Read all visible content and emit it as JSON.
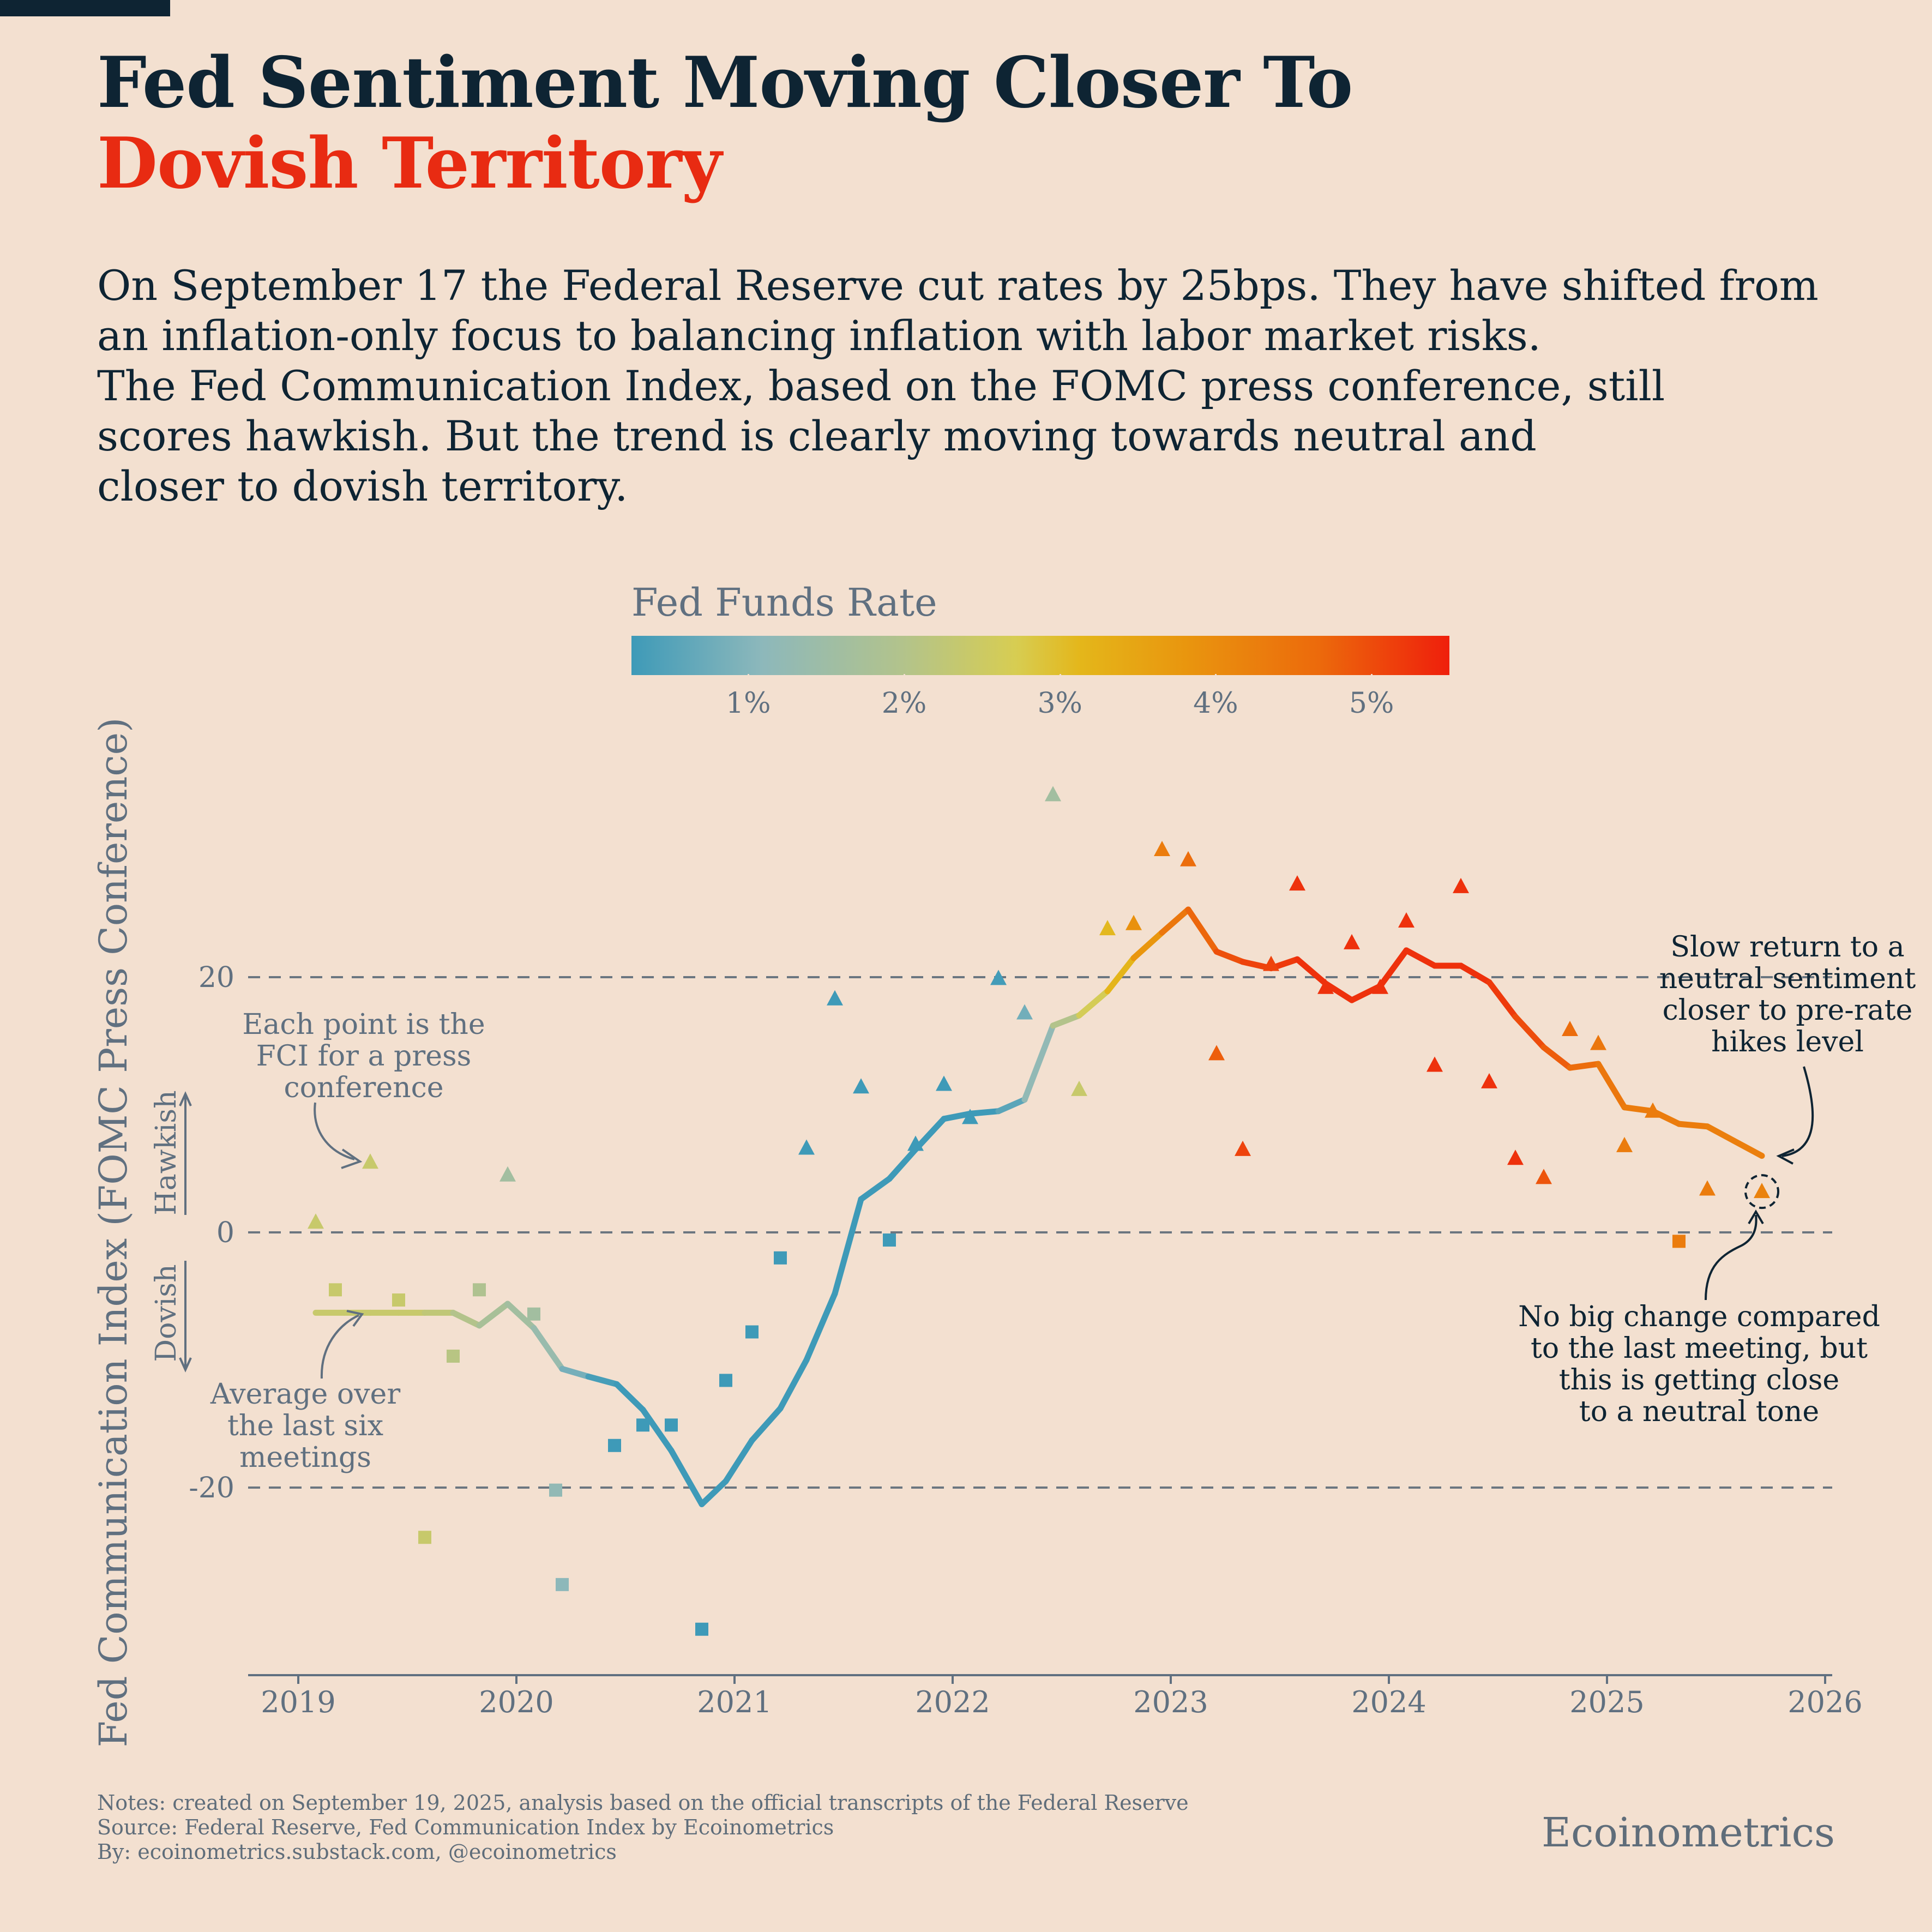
{
  "title": {
    "line1": "Fed Sentiment Moving Closer To",
    "line2": "Dovish Territory"
  },
  "subtitle": [
    "On September 17 the Federal Reserve cut rates by 25bps. They have shifted from",
    "an inflation-only focus to balancing inflation with labor market risks.",
    "The Fed Communication Index, based on the FOMC press conference, still",
    "scores hawkish. But the trend is clearly moving towards neutral and",
    "closer to dovish territory."
  ],
  "legend": {
    "title": "Fed Funds Rate",
    "ticks": [
      "1%",
      "2%",
      "3%",
      "4%",
      "5%"
    ],
    "tick_values": [
      1,
      2,
      3,
      4,
      5
    ],
    "range": [
      0.25,
      5.5
    ]
  },
  "colors": {
    "background": "#f3e0d0",
    "title_dark": "#0e2433",
    "title_accent": "#e82b12",
    "muted": "#607080",
    "scale": [
      "#3e9ab8",
      "#8db8bb",
      "#b2c38c",
      "#d7cd52",
      "#e4b61a",
      "#e9950e",
      "#ec6a0c",
      "#ef1f0c"
    ]
  },
  "chart_data": {
    "type": "line",
    "title": "Fed Communication Index (FOMC Press Conference)",
    "ylabel": "Fed Communication Index (FOMC Press Conference)",
    "xlabel": "",
    "xlim": [
      2018.8,
      2026.05
    ],
    "ylim": [
      -35,
      35
    ],
    "x_ticks": [
      2019,
      2020,
      2021,
      2022,
      2023,
      2024,
      2025,
      2026
    ],
    "x_tick_labels": [
      "2019",
      "2020",
      "2021",
      "2022",
      "2023",
      "2024",
      "2025",
      "2026"
    ],
    "y_ticks": [
      20,
      0,
      -20
    ],
    "y_tick_labels": [
      "20",
      "0",
      "-20"
    ],
    "grid": "dashed horizontal at 20, 0, -20",
    "direction_labels": {
      "up": "Hawkish",
      "down": "Dovish"
    },
    "annotations": [
      {
        "id": "each_point",
        "text": [
          "Each point is the",
          "FCI for a press",
          "conference"
        ]
      },
      {
        "id": "average",
        "text": [
          "Average over",
          "the last six",
          "meetings"
        ]
      },
      {
        "id": "slow_return",
        "text": [
          "Slow return to a",
          "neutral sentiment",
          "closer to pre-rate",
          "hikes level"
        ]
      },
      {
        "id": "no_big_change",
        "text": [
          "No big change compared",
          "to the last meeting, but",
          "this is getting close",
          "to a neutral tone"
        ]
      }
    ],
    "series": [
      {
        "name": "FCI press conference",
        "kind": "points",
        "points": [
          {
            "x": 2019.08,
            "y": 0.8,
            "rate": 2.4,
            "marker": "triangle"
          },
          {
            "x": 2019.17,
            "y": -4.5,
            "rate": 2.4,
            "marker": "square"
          },
          {
            "x": 2019.33,
            "y": 5.5,
            "rate": 2.4,
            "marker": "triangle"
          },
          {
            "x": 2019.46,
            "y": -5.3,
            "rate": 2.4,
            "marker": "square"
          },
          {
            "x": 2019.58,
            "y": -23.9,
            "rate": 2.4,
            "marker": "square"
          },
          {
            "x": 2019.71,
            "y": -9.7,
            "rate": 2.1,
            "marker": "square"
          },
          {
            "x": 2019.83,
            "y": -4.5,
            "rate": 1.9,
            "marker": "square"
          },
          {
            "x": 2019.96,
            "y": 4.5,
            "rate": 1.6,
            "marker": "triangle"
          },
          {
            "x": 2020.08,
            "y": -6.4,
            "rate": 1.6,
            "marker": "square"
          },
          {
            "x": 2020.18,
            "y": -20.2,
            "rate": 1.2,
            "marker": "square"
          },
          {
            "x": 2020.21,
            "y": -27.6,
            "rate": 1.1,
            "marker": "square"
          },
          {
            "x": 2020.45,
            "y": -16.7,
            "rate": 0.1,
            "marker": "square"
          },
          {
            "x": 2020.58,
            "y": -15.1,
            "rate": 0.1,
            "marker": "square"
          },
          {
            "x": 2020.71,
            "y": -15.1,
            "rate": 0.1,
            "marker": "square"
          },
          {
            "x": 2020.85,
            "y": -31.1,
            "rate": 0.1,
            "marker": "square"
          },
          {
            "x": 2020.96,
            "y": -11.6,
            "rate": 0.1,
            "marker": "square"
          },
          {
            "x": 2021.08,
            "y": -7.8,
            "rate": 0.1,
            "marker": "square"
          },
          {
            "x": 2021.21,
            "y": -2.0,
            "rate": 0.1,
            "marker": "square"
          },
          {
            "x": 2021.33,
            "y": 6.6,
            "rate": 0.1,
            "marker": "triangle"
          },
          {
            "x": 2021.46,
            "y": 18.3,
            "rate": 0.1,
            "marker": "triangle"
          },
          {
            "x": 2021.58,
            "y": 11.4,
            "rate": 0.1,
            "marker": "triangle"
          },
          {
            "x": 2021.71,
            "y": -0.6,
            "rate": 0.1,
            "marker": "square"
          },
          {
            "x": 2021.83,
            "y": 6.9,
            "rate": 0.1,
            "marker": "triangle"
          },
          {
            "x": 2021.96,
            "y": 11.6,
            "rate": 0.1,
            "marker": "triangle"
          },
          {
            "x": 2022.08,
            "y": 9.0,
            "rate": 0.1,
            "marker": "triangle"
          },
          {
            "x": 2022.21,
            "y": 19.9,
            "rate": 0.3,
            "marker": "triangle"
          },
          {
            "x": 2022.33,
            "y": 17.2,
            "rate": 0.8,
            "marker": "triangle"
          },
          {
            "x": 2022.46,
            "y": 34.3,
            "rate": 1.6,
            "marker": "triangle"
          },
          {
            "x": 2022.58,
            "y": 11.2,
            "rate": 2.4,
            "marker": "triangle"
          },
          {
            "x": 2022.71,
            "y": 23.8,
            "rate": 3.1,
            "marker": "triangle"
          },
          {
            "x": 2022.83,
            "y": 24.2,
            "rate": 3.9,
            "marker": "triangle"
          },
          {
            "x": 2022.96,
            "y": 30.0,
            "rate": 4.3,
            "marker": "triangle"
          },
          {
            "x": 2023.08,
            "y": 29.2,
            "rate": 4.6,
            "marker": "triangle"
          },
          {
            "x": 2023.21,
            "y": 14.0,
            "rate": 4.8,
            "marker": "triangle"
          },
          {
            "x": 2023.33,
            "y": 6.5,
            "rate": 5.1,
            "marker": "triangle"
          },
          {
            "x": 2023.46,
            "y": 21.0,
            "rate": 5.1,
            "marker": "triangle"
          },
          {
            "x": 2023.58,
            "y": 27.3,
            "rate": 5.3,
            "marker": "triangle"
          },
          {
            "x": 2023.71,
            "y": 19.2,
            "rate": 5.3,
            "marker": "triangle"
          },
          {
            "x": 2023.83,
            "y": 22.7,
            "rate": 5.3,
            "marker": "triangle"
          },
          {
            "x": 2023.96,
            "y": 19.2,
            "rate": 5.3,
            "marker": "triangle"
          },
          {
            "x": 2024.08,
            "y": 24.4,
            "rate": 5.3,
            "marker": "triangle"
          },
          {
            "x": 2024.21,
            "y": 13.1,
            "rate": 5.3,
            "marker": "triangle"
          },
          {
            "x": 2024.33,
            "y": 27.1,
            "rate": 5.3,
            "marker": "triangle"
          },
          {
            "x": 2024.46,
            "y": 11.8,
            "rate": 5.3,
            "marker": "triangle"
          },
          {
            "x": 2024.58,
            "y": 5.8,
            "rate": 5.3,
            "marker": "triangle"
          },
          {
            "x": 2024.71,
            "y": 4.3,
            "rate": 4.9,
            "marker": "triangle"
          },
          {
            "x": 2024.83,
            "y": 15.9,
            "rate": 4.6,
            "marker": "triangle"
          },
          {
            "x": 2024.96,
            "y": 14.8,
            "rate": 4.4,
            "marker": "triangle"
          },
          {
            "x": 2025.08,
            "y": 6.8,
            "rate": 4.3,
            "marker": "triangle"
          },
          {
            "x": 2025.21,
            "y": 9.5,
            "rate": 4.3,
            "marker": "triangle"
          },
          {
            "x": 2025.33,
            "y": -0.7,
            "rate": 4.3,
            "marker": "square"
          },
          {
            "x": 2025.46,
            "y": 3.4,
            "rate": 4.3,
            "marker": "triangle"
          },
          {
            "x": 2025.71,
            "y": 3.2,
            "rate": 4.2,
            "marker": "triangle"
          }
        ]
      },
      {
        "name": "Average over the last six meetings",
        "kind": "line",
        "points": [
          {
            "x": 2019.08,
            "y": -6.3,
            "rate": 2.4
          },
          {
            "x": 2019.21,
            "y": -6.3,
            "rate": 2.4
          },
          {
            "x": 2019.33,
            "y": -6.3,
            "rate": 2.4
          },
          {
            "x": 2019.46,
            "y": -6.3,
            "rate": 2.4
          },
          {
            "x": 2019.58,
            "y": -6.3,
            "rate": 2.4
          },
          {
            "x": 2019.71,
            "y": -6.3,
            "rate": 2.1
          },
          {
            "x": 2019.83,
            "y": -7.3,
            "rate": 1.9
          },
          {
            "x": 2019.96,
            "y": -5.6,
            "rate": 1.6
          },
          {
            "x": 2020.08,
            "y": -7.5,
            "rate": 1.6
          },
          {
            "x": 2020.21,
            "y": -10.7,
            "rate": 1.1
          },
          {
            "x": 2020.33,
            "y": -11.3,
            "rate": 0.6
          },
          {
            "x": 2020.46,
            "y": -11.9,
            "rate": 0.1
          },
          {
            "x": 2020.58,
            "y": -13.9,
            "rate": 0.1
          },
          {
            "x": 2020.71,
            "y": -17.1,
            "rate": 0.1
          },
          {
            "x": 2020.85,
            "y": -21.3,
            "rate": 0.1
          },
          {
            "x": 2020.96,
            "y": -19.5,
            "rate": 0.1
          },
          {
            "x": 2021.08,
            "y": -16.3,
            "rate": 0.1
          },
          {
            "x": 2021.21,
            "y": -13.8,
            "rate": 0.1
          },
          {
            "x": 2021.33,
            "y": -10.0,
            "rate": 0.1
          },
          {
            "x": 2021.46,
            "y": -4.8,
            "rate": 0.1
          },
          {
            "x": 2021.58,
            "y": 2.6,
            "rate": 0.1
          },
          {
            "x": 2021.71,
            "y": 4.2,
            "rate": 0.1
          },
          {
            "x": 2021.83,
            "y": 6.5,
            "rate": 0.1
          },
          {
            "x": 2021.96,
            "y": 8.9,
            "rate": 0.1
          },
          {
            "x": 2022.08,
            "y": 9.3,
            "rate": 0.1
          },
          {
            "x": 2022.21,
            "y": 9.5,
            "rate": 0.3
          },
          {
            "x": 2022.33,
            "y": 10.4,
            "rate": 0.8
          },
          {
            "x": 2022.46,
            "y": 16.2,
            "rate": 1.6
          },
          {
            "x": 2022.58,
            "y": 17.0,
            "rate": 2.4
          },
          {
            "x": 2022.71,
            "y": 18.9,
            "rate": 2.9
          },
          {
            "x": 2022.83,
            "y": 21.5,
            "rate": 3.4
          },
          {
            "x": 2022.96,
            "y": 23.5,
            "rate": 4.2
          },
          {
            "x": 2023.08,
            "y": 25.3,
            "rate": 4.6
          },
          {
            "x": 2023.21,
            "y": 22.0,
            "rate": 4.8
          },
          {
            "x": 2023.33,
            "y": 21.2,
            "rate": 5.1
          },
          {
            "x": 2023.46,
            "y": 20.7,
            "rate": 5.1
          },
          {
            "x": 2023.58,
            "y": 21.4,
            "rate": 5.3
          },
          {
            "x": 2023.71,
            "y": 19.5,
            "rate": 5.3
          },
          {
            "x": 2023.83,
            "y": 18.2,
            "rate": 5.3
          },
          {
            "x": 2023.96,
            "y": 19.3,
            "rate": 5.3
          },
          {
            "x": 2024.08,
            "y": 22.1,
            "rate": 5.3
          },
          {
            "x": 2024.21,
            "y": 20.9,
            "rate": 5.3
          },
          {
            "x": 2024.33,
            "y": 20.9,
            "rate": 5.3
          },
          {
            "x": 2024.46,
            "y": 19.6,
            "rate": 5.3
          },
          {
            "x": 2024.58,
            "y": 16.9,
            "rate": 5.1
          },
          {
            "x": 2024.71,
            "y": 14.5,
            "rate": 4.9
          },
          {
            "x": 2024.83,
            "y": 12.9,
            "rate": 4.7
          },
          {
            "x": 2024.96,
            "y": 13.2,
            "rate": 4.5
          },
          {
            "x": 2025.08,
            "y": 9.8,
            "rate": 4.3
          },
          {
            "x": 2025.21,
            "y": 9.5,
            "rate": 4.3
          },
          {
            "x": 2025.33,
            "y": 8.5,
            "rate": 4.3
          },
          {
            "x": 2025.46,
            "y": 8.3,
            "rate": 4.3
          },
          {
            "x": 2025.71,
            "y": 6.0,
            "rate": 4.2
          }
        ]
      }
    ]
  },
  "footer": {
    "notes": "Notes: created on September 19, 2025, analysis based on the official transcripts of the Federal Reserve",
    "source": "Source: Federal Reserve, Fed Communication Index by Ecoinometrics",
    "by": "By: ecoinometrics.substack.com, @ecoinometrics"
  },
  "brand": "Ecoinometrics"
}
